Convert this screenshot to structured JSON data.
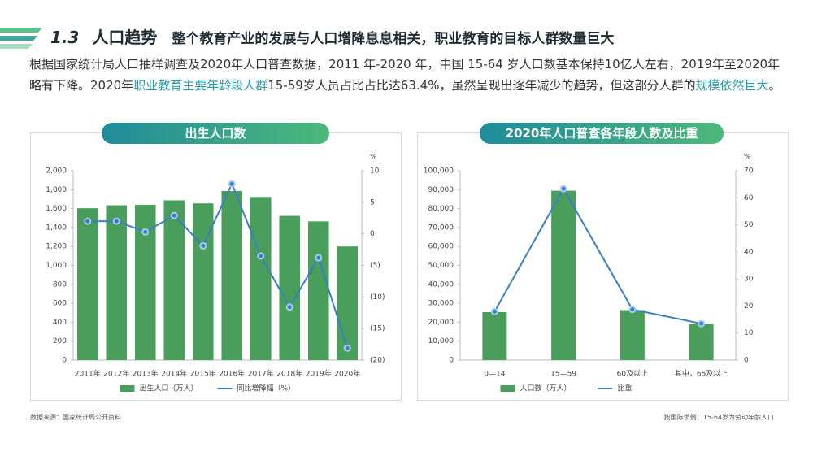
{
  "header": {
    "number": "1.3",
    "title": "人口趋势",
    "subtitle": "整个教育产业的发展与人口增降息息相关，职业教育的目标人群数量巨大"
  },
  "intro": [
    {
      "text": "根据国家统计局人口抽样调查及2020年人口普查数据，2011 年-2020 年，中国 15-64 岁人口数基本保持10亿人左右，2019年至2020年略有下降。2020年",
      "highlight": false
    },
    {
      "text": "职业教育主要年龄段人群",
      "highlight": true
    },
    {
      "text": "15-59岁人员占比占比达63.4%，虽然呈现出逐年减少的趋势，但这部分人群的",
      "highlight": false
    },
    {
      "text": "规模依然巨大",
      "highlight": true
    },
    {
      "text": "。",
      "highlight": false
    }
  ],
  "footnotes": [
    "数据来源：国家统计局公开资料",
    "按国际惯例：15-64岁为劳动年龄人口"
  ],
  "chart_data": [
    {
      "type": "bar",
      "title": "出生人口数",
      "categories": [
        "2011年",
        "2012年",
        "2013年",
        "2014年",
        "2015年",
        "2016年",
        "2017年",
        "2018年",
        "2019年",
        "2020年"
      ],
      "series": [
        {
          "name": "出生人口（万人）",
          "color": "#4a9e5c",
          "values": [
            1604,
            1635,
            1640,
            1687,
            1655,
            1786,
            1723,
            1523,
            1465,
            1200
          ]
        },
        {
          "name": "同比增降幅（%）",
          "color": "#3a7fc1",
          "type": "line",
          "axis": "y2",
          "values": [
            2.0,
            2.0,
            0.3,
            2.9,
            -1.9,
            7.9,
            -3.5,
            -11.6,
            -3.8,
            -18.1
          ]
        }
      ],
      "ylim": [
        0,
        2000
      ],
      "yticks": [
        0,
        200,
        400,
        600,
        800,
        {
          "value": 1000,
          "label": "1,000"
        },
        {
          "value": 1200,
          "label": "1,200"
        },
        {
          "value": 1400,
          "label": "1,400"
        },
        {
          "value": 1600,
          "label": "1,600"
        },
        {
          "value": 1800,
          "label": "1,800"
        },
        {
          "value": 2000,
          "label": "2,000"
        }
      ],
      "y2lim": [
        -20,
        10
      ],
      "y2ticks": [
        {
          "value": -20,
          "label": "(20)"
        },
        {
          "value": -15,
          "label": "(15)"
        },
        {
          "value": -10,
          "label": "(10)"
        },
        {
          "value": -5,
          "label": "(5)"
        },
        0,
        5,
        10
      ],
      "y2_label": "%",
      "grid": false
    },
    {
      "type": "bar",
      "title": "2020年人口普查各年段人数及比重",
      "categories": [
        "0—14",
        "15—59",
        "60及以上",
        "其中，65及以上"
      ],
      "series": [
        {
          "name": "人口数（万人）",
          "color": "#4a9e5c",
          "values": [
            25338,
            89438,
            26402,
            19064
          ]
        },
        {
          "name": "比重",
          "color": "#3a7fc1",
          "type": "line",
          "axis": "y2",
          "values": [
            17.95,
            63.35,
            18.7,
            13.5
          ]
        }
      ],
      "ylim": [
        0,
        100000
      ],
      "yticks": [
        0,
        {
          "value": 10000,
          "label": "10,000"
        },
        {
          "value": 20000,
          "label": "20,000"
        },
        {
          "value": 30000,
          "label": "30,000"
        },
        {
          "value": 40000,
          "label": "40,000"
        },
        {
          "value": 50000,
          "label": "50,000"
        },
        {
          "value": 60000,
          "label": "60,000"
        },
        {
          "value": 70000,
          "label": "70,000"
        },
        {
          "value": 80000,
          "label": "80,000"
        },
        {
          "value": 90000,
          "label": "90,000"
        },
        {
          "value": 100000,
          "label": "100,000"
        }
      ],
      "y2lim": [
        0,
        70
      ],
      "y2ticks": [
        0,
        10,
        20,
        30,
        40,
        50,
        60,
        70
      ],
      "y2_label": "%",
      "grid": false
    }
  ]
}
